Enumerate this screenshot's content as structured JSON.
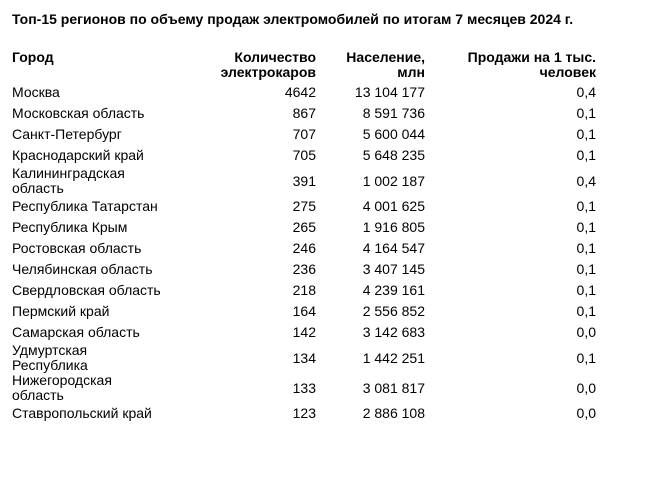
{
  "title": "Топ-15 регионов по объему продаж электромобилей по итогам 7 месяцев 2024 г.",
  "headers": [
    "Город",
    "Количество электрокаров",
    "Население, млн",
    "Продажи на 1 тыс. человек"
  ],
  "rows": [
    [
      "Москва",
      "4642",
      "13 104 177",
      "0,4"
    ],
    [
      "Московская область",
      "867",
      "8 591 736",
      "0,1"
    ],
    [
      "Санкт-Петербург",
      "707",
      "5 600 044",
      "0,1"
    ],
    [
      "Краснодарский край",
      "705",
      "5 648 235",
      "0,1"
    ],
    [
      "Калининградская область",
      "391",
      "1 002 187",
      "0,4"
    ],
    [
      "Республика Татарстан",
      "275",
      "4 001 625",
      "0,1"
    ],
    [
      "Республика Крым",
      "265",
      "1 916 805",
      "0,1"
    ],
    [
      "Ростовская область",
      "246",
      "4 164 547",
      "0,1"
    ],
    [
      "Челябинская область",
      "236",
      "3 407 145",
      "0,1"
    ],
    [
      "Свердловская область",
      "218",
      "4 239 161",
      "0,1"
    ],
    [
      "Пермский край",
      "164",
      "2 556 852",
      "0,1"
    ],
    [
      "Самарская область",
      "142",
      "3 142 683",
      "0,0"
    ],
    [
      "Удмуртская Республика",
      "134",
      "1 442 251",
      "0,1"
    ],
    [
      "Нижегородская область",
      "133",
      "3 081 817",
      "0,0"
    ],
    [
      "Ставропольский край",
      "123",
      "2 886 108",
      "0,0"
    ]
  ]
}
